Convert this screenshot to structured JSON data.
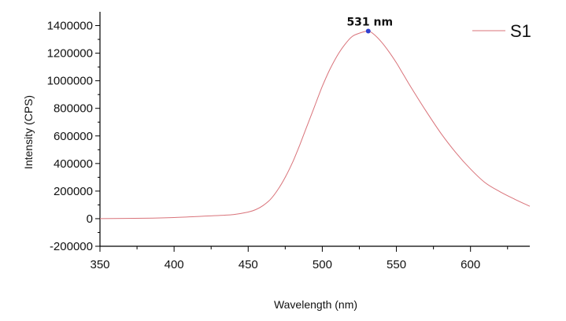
{
  "chart_data": {
    "type": "line",
    "title": "",
    "xlabel": "Wavelength (nm)",
    "ylabel": "Intensity (CPS)",
    "xlim": [
      350,
      640
    ],
    "ylim": [
      -200000,
      1400000
    ],
    "x_ticks": [
      350,
      400,
      450,
      500,
      550,
      600
    ],
    "y_ticks": [
      -200000,
      0,
      200000,
      400000,
      600000,
      800000,
      1000000,
      1200000,
      1400000
    ],
    "grid": false,
    "legend_position": "top-right",
    "series": [
      {
        "name": "S1",
        "color": "#d9737a",
        "x": [
          350,
          380,
          400,
          420,
          440,
          450,
          455,
          460,
          465,
          470,
          475,
          480,
          485,
          490,
          495,
          500,
          505,
          510,
          515,
          520,
          525,
          531,
          535,
          540,
          545,
          550,
          555,
          560,
          570,
          580,
          590,
          600,
          610,
          620,
          630,
          640
        ],
        "y": [
          0,
          3000,
          8000,
          18000,
          30000,
          48000,
          65000,
          95000,
          140000,
          210000,
          300000,
          410000,
          540000,
          680000,
          820000,
          960000,
          1080000,
          1180000,
          1260000,
          1320000,
          1345000,
          1360000,
          1335000,
          1280000,
          1210000,
          1130000,
          1040000,
          950000,
          780000,
          620000,
          480000,
          360000,
          260000,
          195000,
          140000,
          90000
        ]
      }
    ],
    "annotations": [
      {
        "text": "531 nm",
        "x": 531,
        "y": 1360000,
        "marker_color": "#3040d0"
      }
    ]
  }
}
